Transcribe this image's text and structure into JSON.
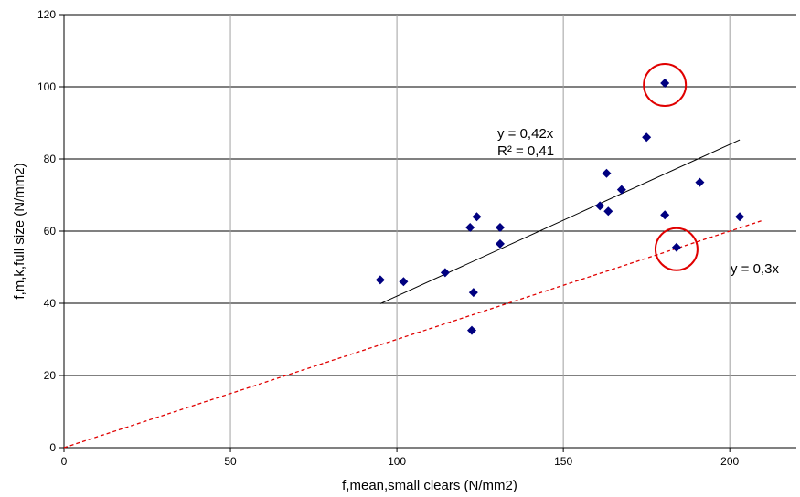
{
  "chart_data": {
    "type": "scatter",
    "xlabel": "f,mean,small clears (N/mm2)",
    "ylabel": "f,m,k,full size  (N/mm2)",
    "xlim": [
      0,
      220
    ],
    "ylim": [
      0,
      120
    ],
    "x_ticks": [
      0,
      50,
      100,
      150,
      200
    ],
    "y_ticks": [
      0,
      20,
      40,
      60,
      80,
      100,
      120
    ],
    "x_tick_labels": [
      "0",
      "50",
      "100",
      "150",
      "200"
    ],
    "y_tick_labels": [
      "0",
      "20",
      "40",
      "60",
      "80",
      "100",
      "120"
    ],
    "grid": true,
    "series": [
      {
        "marker": "diamond",
        "color": "#000080",
        "points": [
          {
            "x": 95,
            "y": 46.5
          },
          {
            "x": 102,
            "y": 46
          },
          {
            "x": 114.5,
            "y": 48.5
          },
          {
            "x": 122,
            "y": 61
          },
          {
            "x": 122.5,
            "y": 32.5
          },
          {
            "x": 123,
            "y": 43
          },
          {
            "x": 124,
            "y": 64
          },
          {
            "x": 131,
            "y": 61
          },
          {
            "x": 131,
            "y": 56.5
          },
          {
            "x": 161,
            "y": 67
          },
          {
            "x": 163,
            "y": 76
          },
          {
            "x": 163.5,
            "y": 65.5
          },
          {
            "x": 167.5,
            "y": 71.5
          },
          {
            "x": 175,
            "y": 86
          },
          {
            "x": 180.5,
            "y": 101
          },
          {
            "x": 180.5,
            "y": 64.5
          },
          {
            "x": 184,
            "y": 55.5
          },
          {
            "x": 191,
            "y": 73.5
          },
          {
            "x": 203,
            "y": 64
          }
        ]
      }
    ],
    "trendlines": [
      {
        "label": "y = 0,42x",
        "x": [
          95,
          203
        ],
        "y": [
          39.9,
          85.3
        ],
        "color": "#000000",
        "dashed": false
      },
      {
        "label": "y = 0,3x",
        "x": [
          0,
          210
        ],
        "y": [
          0,
          63
        ],
        "color": "#e00000",
        "dashed": true
      }
    ],
    "annotations": [
      {
        "text": "y = 0,42x"
      },
      {
        "text": "R² = 0,41"
      },
      {
        "text": "y = 0,3x"
      }
    ],
    "highlight_circles": [
      {
        "x": 180.5,
        "y": 100.5,
        "color": "#e00000"
      },
      {
        "x": 184,
        "y": 55,
        "color": "#e00000"
      }
    ]
  }
}
